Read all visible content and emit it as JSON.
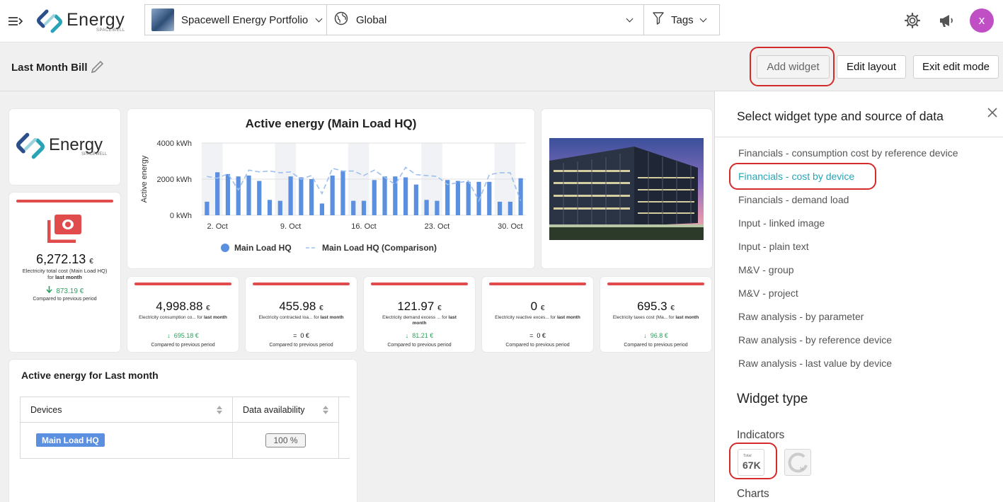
{
  "header": {
    "app_name": "Energy",
    "app_sub": "SPACEWELL",
    "portfolio": "Spacewell Energy Portfolio",
    "scope": "Global",
    "tags": "Tags",
    "avatar_initial": "x",
    "avatar_color": "#c04fc5"
  },
  "editbar": {
    "title": "Last Month Bill",
    "add_widget": "Add widget",
    "edit_layout": "Edit layout",
    "exit_edit": "Exit edit mode"
  },
  "logo_widget": {
    "name": "Energy",
    "sub": "SPACEWELL"
  },
  "total_cost": {
    "value": "6,272.13",
    "currency": "€",
    "desc_pre": "Electricity total cost (Main Load HQ) for ",
    "desc_period": "last month",
    "delta": "873.19 €",
    "compare": "Compared to previous period"
  },
  "kpis": [
    {
      "value": "4,998.88",
      "currency": "€",
      "desc_pre": "Electricity consumption co... for ",
      "desc_period": "last month",
      "delta_sign": "↓",
      "delta": "695.18 €",
      "compare": "Compared to previous period",
      "trend": "down"
    },
    {
      "value": "455.98",
      "currency": "€",
      "desc_pre": "Electricity contracted loa... for ",
      "desc_period": "last month",
      "delta_sign": "=",
      "delta": "0 €",
      "compare": "Compared to previous period",
      "trend": "neutral"
    },
    {
      "value": "121.97",
      "currency": "€",
      "desc_pre": "Electricity demand excess ... for ",
      "desc_period": "last month",
      "delta_sign": "↓",
      "delta": "81.21 €",
      "compare": "Compared to previous period",
      "trend": "down"
    },
    {
      "value": "0",
      "currency": "€",
      "desc_pre": "Electricity reactive exces... for ",
      "desc_period": "last month",
      "delta_sign": "=",
      "delta": "0 €",
      "compare": "Compared to previous period",
      "trend": "neutral"
    },
    {
      "value": "695.3",
      "currency": "€",
      "desc_pre": "Electricity taxes cost (Ma... for ",
      "desc_period": "last month",
      "delta_sign": "↓",
      "delta": "96.8 €",
      "compare": "Compared to previous period",
      "trend": "down"
    }
  ],
  "chart_data": {
    "type": "bar",
    "title": "Active energy (Main Load HQ)",
    "ylabel": "Active energy",
    "ylim": [
      0,
      4000
    ],
    "yticks": [
      "0 kWh",
      "2000 kWh",
      "4000 kWh"
    ],
    "xtick_labels": [
      "2. Oct",
      "9. Oct",
      "16. Oct",
      "23. Oct",
      "30. Oct"
    ],
    "xtick_days": [
      2,
      9,
      16,
      23,
      30
    ],
    "x": [
      1,
      2,
      3,
      4,
      5,
      6,
      7,
      8,
      9,
      10,
      11,
      12,
      13,
      14,
      15,
      16,
      17,
      18,
      19,
      20,
      21,
      22,
      23,
      24,
      25,
      26,
      27,
      28,
      29,
      30,
      31
    ],
    "series": [
      {
        "name": "Main Load HQ",
        "style": "bar",
        "color": "#5b8fe0",
        "values": [
          750,
          2380,
          2280,
          2150,
          2200,
          1900,
          850,
          800,
          2150,
          2100,
          2000,
          650,
          2200,
          2450,
          800,
          800,
          1950,
          2150,
          2150,
          2100,
          1700,
          850,
          800,
          1950,
          1900,
          1850,
          1850,
          1850,
          750,
          750,
          2050
        ]
      },
      {
        "name": "Main Load HQ (Comparison)",
        "style": "dashed-line",
        "color": "#9ec0ee",
        "values": [
          2150,
          2050,
          2300,
          1400,
          2500,
          2400,
          2450,
          2350,
          2400,
          2000,
          2200,
          1200,
          2600,
          2450,
          2450,
          2200,
          2500,
          2100,
          1700,
          2650,
          2250,
          2200,
          2150,
          1700,
          1800,
          1900,
          800,
          2250,
          2350,
          2350,
          800
        ]
      }
    ],
    "legend_position": "bottom-center",
    "grid": true
  },
  "energy_table": {
    "title": "Active energy for Last month",
    "col_devices": "Devices",
    "col_avail": "Data availability",
    "device": "Main Load HQ",
    "availability": "100 %"
  },
  "panel": {
    "title": "Select widget type and source of data",
    "sources": [
      "Financials - consumption cost by reference device",
      "Financials - cost by device",
      "Financials - demand load",
      "Input - linked image",
      "Input - plain text",
      "M&V - group",
      "M&V - project",
      "Raw analysis - by parameter",
      "Raw analysis - by reference device",
      "Raw analysis - last value by device"
    ],
    "active_index": 1,
    "widget_type_heading": "Widget type",
    "indicators_label": "Indicators",
    "total_tile_label": "Total",
    "total_tile_value": "67K",
    "charts_label": "Charts"
  }
}
